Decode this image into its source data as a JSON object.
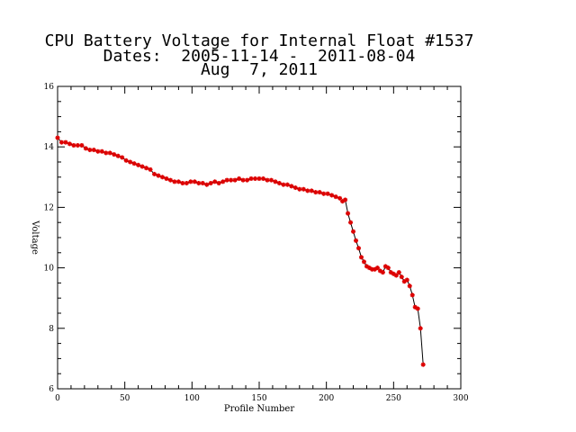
{
  "chart_data": {
    "type": "line",
    "title_lines": [
      "CPU Battery Voltage for Internal Float #1537",
      "Dates:  2005-11-14 -  2011-08-04",
      "Aug  7, 2011"
    ],
    "xlabel": "Profile Number",
    "ylabel": "Voltage",
    "xlim": [
      0,
      300
    ],
    "ylim": [
      6,
      16
    ],
    "x_ticks": [
      0,
      50,
      100,
      150,
      200,
      250,
      300
    ],
    "y_ticks": [
      6,
      8,
      10,
      12,
      14,
      16
    ],
    "grid": false,
    "colors": {
      "line": "#000000",
      "marker": "#dd0000"
    },
    "series": [
      {
        "x": [
          0,
          3,
          6,
          9,
          12,
          15,
          18,
          21,
          24,
          27,
          30,
          33,
          36,
          39,
          42,
          45,
          48,
          51,
          54,
          57,
          60,
          63,
          66,
          69,
          72,
          75,
          78,
          81,
          84,
          87,
          90,
          93,
          96,
          99,
          102,
          105,
          108,
          111,
          114,
          117,
          120,
          123,
          126,
          129,
          132,
          135,
          138,
          141,
          144,
          147,
          150,
          153,
          156,
          159,
          162,
          165,
          168,
          171,
          174,
          177,
          180,
          183,
          186,
          189,
          192,
          195,
          198,
          201,
          204,
          207,
          210,
          212,
          214,
          216,
          218,
          220,
          222,
          224,
          226,
          228,
          230,
          232,
          234,
          236,
          238,
          240,
          242,
          244,
          246,
          248,
          250,
          252,
          254,
          256,
          258,
          260,
          262,
          264,
          266,
          268,
          270,
          272
        ],
        "y": [
          14.3,
          14.15,
          14.15,
          14.1,
          14.05,
          14.05,
          14.05,
          13.95,
          13.9,
          13.9,
          13.85,
          13.85,
          13.8,
          13.8,
          13.75,
          13.7,
          13.65,
          13.55,
          13.5,
          13.45,
          13.4,
          13.35,
          13.3,
          13.25,
          13.1,
          13.05,
          13.0,
          12.95,
          12.9,
          12.85,
          12.85,
          12.8,
          12.8,
          12.85,
          12.85,
          12.8,
          12.8,
          12.75,
          12.8,
          12.85,
          12.8,
          12.85,
          12.9,
          12.9,
          12.9,
          12.95,
          12.9,
          12.9,
          12.95,
          12.95,
          12.95,
          12.95,
          12.9,
          12.9,
          12.85,
          12.8,
          12.75,
          12.75,
          12.7,
          12.65,
          12.6,
          12.6,
          12.55,
          12.55,
          12.5,
          12.5,
          12.45,
          12.45,
          12.4,
          12.35,
          12.3,
          12.2,
          12.25,
          11.8,
          11.5,
          11.2,
          10.9,
          10.65,
          10.35,
          10.2,
          10.05,
          10.0,
          9.95,
          9.95,
          10.0,
          9.9,
          9.85,
          10.05,
          10.0,
          9.85,
          9.8,
          9.75,
          9.85,
          9.7,
          9.55,
          9.6,
          9.4,
          9.1,
          8.7,
          8.65,
          8.0,
          6.8
        ]
      }
    ]
  }
}
